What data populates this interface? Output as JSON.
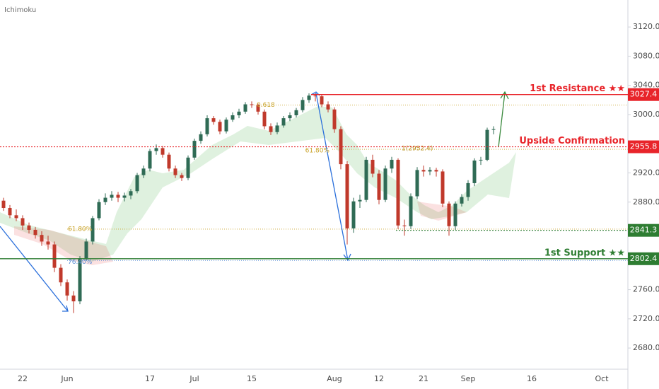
{
  "chart_data": {
    "type": "candlestick",
    "indicator": "Ichimoku",
    "categories": [
      null,
      null,
      null,
      null,
      "22",
      null,
      null,
      null,
      null,
      null,
      null,
      "Jun",
      null,
      null,
      null,
      null,
      null,
      null,
      null,
      null,
      null,
      null,
      null,
      null,
      "17",
      null,
      null,
      null,
      null,
      null,
      null,
      "Jul",
      null,
      null,
      null,
      null,
      null,
      null,
      null,
      null,
      "15",
      null,
      null,
      null,
      null,
      null,
      null,
      null,
      null,
      null,
      null,
      null,
      null,
      "Aug",
      null,
      null,
      null,
      null,
      null,
      null,
      "12",
      null,
      null,
      null,
      null,
      null,
      null,
      "21",
      null,
      null,
      null,
      null,
      null,
      null,
      "Sep",
      null,
      null,
      null,
      null,
      null,
      null,
      null,
      null,
      null,
      "16",
      null,
      null,
      null,
      null,
      null,
      null,
      null,
      null,
      null,
      null,
      "Oct",
      null,
      null,
      null,
      null
    ],
    "open": [
      2888,
      2882,
      2872,
      2862,
      2858,
      2848,
      2842,
      2835,
      2826,
      2822,
      2790,
      2770,
      2752,
      2744,
      2803,
      2826,
      2858,
      2880,
      2886,
      2890,
      2886,
      2889,
      2895,
      2917,
      2926,
      2950,
      2954,
      2945,
      2926,
      2917,
      2913,
      2941,
      2964,
      2973,
      2995,
      2990,
      2977,
      2993,
      2999,
      3004,
      3014,
      3013,
      3004,
      2984,
      2976,
      2985,
      2995,
      2999,
      3006,
      3020,
      3026,
      3025,
      3014,
      3007,
      2980,
      2932,
      2844,
      2881,
      2883,
      2938,
      2919,
      2883,
      2926,
      2938,
      2848,
      2847,
      2888,
      2924,
      2922,
      2924,
      2922,
      2878,
      2847,
      2878,
      2887,
      2906,
      2937,
      2938,
      2979,
      null,
      null,
      null,
      null,
      null,
      null,
      null,
      null,
      null,
      null,
      null,
      null,
      null,
      null,
      null,
      null,
      null,
      null,
      null,
      null,
      null
    ],
    "high": [
      2892,
      2886,
      2876,
      2870,
      2862,
      2852,
      2846,
      2840,
      2834,
      2826,
      2795,
      2774,
      2758,
      2806,
      2830,
      2861,
      2884,
      2892,
      2895,
      2894,
      2893,
      2898,
      2920,
      2930,
      2953,
      2959,
      2957,
      2948,
      2930,
      2920,
      2944,
      2967,
      2977,
      2999,
      2998,
      2993,
      2996,
      3003,
      3008,
      3017,
      3018,
      3015,
      3007,
      2988,
      2989,
      2998,
      3003,
      3009,
      3024,
      3029,
      3029,
      3027,
      3018,
      3010,
      2984,
      2936,
      2886,
      2890,
      2942,
      2945,
      2924,
      2930,
      2942,
      2940,
      2856,
      2892,
      2928,
      2930,
      2928,
      2927,
      2925,
      2881,
      2881,
      2891,
      2910,
      2940,
      2942,
      2982,
      2984,
      null,
      null,
      null,
      null,
      null,
      null,
      null,
      null,
      null,
      null,
      null,
      null,
      null,
      null,
      null,
      null,
      null,
      null,
      null,
      null,
      null
    ],
    "low": [
      2878,
      2868,
      2858,
      2854,
      2842,
      2837,
      2830,
      2820,
      2815,
      2784,
      2765,
      2745,
      2728,
      2740,
      2800,
      2822,
      2855,
      2876,
      2882,
      2880,
      2881,
      2884,
      2892,
      2913,
      2922,
      2945,
      2941,
      2922,
      2913,
      2909,
      2910,
      2938,
      2960,
      2970,
      2986,
      2973,
      2974,
      2990,
      2995,
      3001,
      3009,
      3000,
      2980,
      2972,
      2973,
      2982,
      2991,
      2996,
      3003,
      3016,
      3018,
      3010,
      3003,
      2975,
      2925,
      2822,
      2838,
      2872,
      2880,
      2914,
      2877,
      2880,
      2920,
      2843,
      2834,
      2843,
      2884,
      2915,
      2917,
      2915,
      2873,
      2834,
      2842,
      2874,
      2882,
      2902,
      2931,
      2936,
      2973,
      null,
      null,
      null,
      null,
      null,
      null,
      null,
      null,
      null,
      null,
      null,
      null,
      null,
      null,
      null,
      null,
      null,
      null,
      null,
      null,
      null
    ],
    "close": [
      2882,
      2872,
      2862,
      2858,
      2848,
      2842,
      2835,
      2826,
      2822,
      2790,
      2770,
      2752,
      2744,
      2803,
      2826,
      2858,
      2880,
      2886,
      2890,
      2886,
      2889,
      2895,
      2917,
      2926,
      2950,
      2954,
      2945,
      2926,
      2917,
      2913,
      2941,
      2964,
      2973,
      2995,
      2990,
      2977,
      2993,
      2999,
      3004,
      3014,
      3013,
      3004,
      2984,
      2976,
      2985,
      2995,
      2999,
      3006,
      3020,
      3026,
      3025,
      3014,
      3007,
      2980,
      2932,
      2844,
      2881,
      2883,
      2938,
      2919,
      2883,
      2926,
      2938,
      2848,
      2847,
      2888,
      2924,
      2922,
      2924,
      2922,
      2878,
      2847,
      2878,
      2887,
      2906,
      2937,
      2938,
      2979,
      2980,
      null,
      null,
      null,
      null,
      null,
      null,
      null,
      null,
      null,
      null,
      null,
      null,
      null,
      null,
      null,
      null,
      null,
      null,
      null,
      null,
      null
    ],
    "up_color": "#2f6b55",
    "down_color": "#c0392b",
    "ylim": [
      2651,
      3157
    ],
    "yticks": [
      {
        "value": 3120,
        "label": "3120.0"
      },
      {
        "value": 3080,
        "label": "3080.0"
      },
      {
        "value": 3040,
        "label": "3040.0"
      },
      {
        "value": 3000,
        "label": "3000.0"
      },
      {
        "value": 2920,
        "label": "2920.0"
      },
      {
        "value": 2880,
        "label": "2880.0"
      },
      {
        "value": 2760,
        "label": "2760.0"
      },
      {
        "value": 2720,
        "label": "2720.0"
      },
      {
        "value": 2680,
        "label": "2680.0"
      }
    ],
    "levels": [
      {
        "value": 3027.4,
        "label": "1st Resistance ★★",
        "color": "#e8242a",
        "style": "solid"
      },
      {
        "value": 2955.8,
        "label": "Upside Confirmation",
        "color": "#e8242a",
        "style": "dotted"
      },
      {
        "value": 2841.3,
        "color": "#2e7d32",
        "style": "dotted"
      },
      {
        "value": 2802.4,
        "label": "1st Support ★★",
        "color": "#2e7d32",
        "style": "solid"
      }
    ],
    "fib_lines": [
      {
        "value": 3013,
        "label": "0.618",
        "color": "#c9a227"
      },
      {
        "value": 2952.4,
        "label": "61.80%",
        "color": "#c9a227"
      },
      {
        "value": 2843,
        "label": "61.80%",
        "color": "#c9a227"
      },
      {
        "value": 2800,
        "label": "76.40%",
        "color": "#5b8fd6"
      }
    ],
    "annotation": "1(2952.4)"
  }
}
